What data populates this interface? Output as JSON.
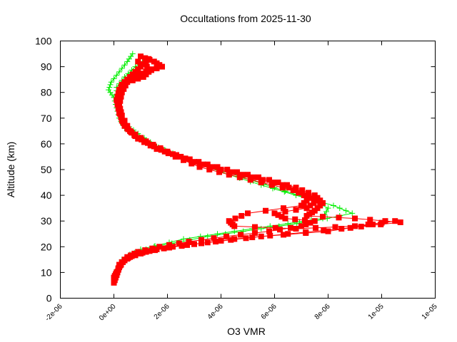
{
  "chart_data": {
    "type": "scatter",
    "title": "Occultations from 2025-11-30",
    "xlabel": "O3 VMR",
    "ylabel": "Altitude (km)",
    "xlim": [
      -2e-06,
      1.2e-05
    ],
    "ylim": [
      0,
      100
    ],
    "x_tick_labels": [
      "-2e-06",
      "0e+00",
      "2e-06",
      "4e-06",
      "6e-06",
      "8e-06",
      "1e-05",
      "1e-05"
    ],
    "y_tick_labels": [
      "0",
      "10",
      "20",
      "30",
      "40",
      "50",
      "60",
      "70",
      "80",
      "90",
      "100"
    ],
    "grid": false,
    "legend": null,
    "series": [
      {
        "name": "green-profile-a",
        "color": "#00ee00",
        "marker": "plus",
        "points": [
          [
            7e-07,
            95
          ],
          [
            5e-07,
            92
          ],
          [
            2e-07,
            88
          ],
          [
            -1e-07,
            84
          ],
          [
            -2e-07,
            81
          ],
          [
            0,
            78
          ],
          [
            1e-07,
            74
          ],
          [
            2e-07,
            70
          ],
          [
            4e-07,
            66
          ],
          [
            8e-07,
            63
          ],
          [
            1.4e-06,
            60
          ],
          [
            2.2e-06,
            56
          ],
          [
            3.2e-06,
            52
          ],
          [
            4.3e-06,
            48
          ],
          [
            5.5e-06,
            44
          ],
          [
            6.8e-06,
            40
          ],
          [
            8.2e-06,
            36
          ],
          [
            8.9e-06,
            33
          ],
          [
            7.5e-06,
            30
          ],
          [
            5.5e-06,
            27
          ],
          [
            3.5e-06,
            24
          ],
          [
            1.5e-06,
            20
          ],
          [
            6e-07,
            17
          ],
          [
            2e-07,
            13
          ],
          [
            1e-07,
            10
          ],
          [
            0,
            7
          ]
        ]
      },
      {
        "name": "green-profile-b",
        "color": "#00ee00",
        "marker": "plus",
        "points": [
          [
            1.2e-06,
            93
          ],
          [
            8e-07,
            90
          ],
          [
            4e-07,
            86
          ],
          [
            1e-07,
            82
          ],
          [
            1e-07,
            78
          ],
          [
            2e-07,
            73
          ],
          [
            4e-07,
            68
          ],
          [
            9e-07,
            64
          ],
          [
            1.6e-06,
            59
          ],
          [
            2.5e-06,
            55
          ],
          [
            3.6e-06,
            51
          ],
          [
            4.8e-06,
            47
          ],
          [
            6e-06,
            43
          ],
          [
            7.2e-06,
            39
          ],
          [
            8e-06,
            35
          ],
          [
            7.8e-06,
            31
          ],
          [
            6.5e-06,
            29
          ],
          [
            4.5e-06,
            26
          ],
          [
            2.6e-06,
            23
          ],
          [
            1e-06,
            19
          ],
          [
            3e-07,
            15
          ],
          [
            1e-07,
            11
          ]
        ]
      },
      {
        "name": "red-profile-a",
        "color": "#ff0000",
        "marker": "square",
        "points": [
          [
            1e-06,
            94
          ],
          [
            1.5e-06,
            92
          ],
          [
            1.8e-06,
            90
          ],
          [
            1.2e-06,
            88
          ],
          [
            6e-07,
            86
          ],
          [
            3e-07,
            83
          ],
          [
            2e-07,
            80
          ],
          [
            2e-07,
            77
          ],
          [
            2e-07,
            73
          ],
          [
            3e-07,
            69
          ],
          [
            5e-07,
            66
          ],
          [
            9e-07,
            62
          ],
          [
            1.6e-06,
            58
          ],
          [
            2.5e-06,
            55
          ],
          [
            3.5e-06,
            52
          ],
          [
            4.6e-06,
            49
          ],
          [
            5.8e-06,
            46
          ],
          [
            6.8e-06,
            43
          ],
          [
            7.5e-06,
            40
          ],
          [
            7.8e-06,
            37
          ],
          [
            7.5e-06,
            34
          ],
          [
            7.2e-06,
            32
          ],
          [
            9e-06,
            31
          ],
          [
            1.07e-05,
            29.5
          ],
          [
            8.5e-06,
            27
          ],
          [
            6.5e-06,
            25
          ],
          [
            4.5e-06,
            23
          ],
          [
            3e-06,
            21
          ],
          [
            1.6e-06,
            19
          ],
          [
            8e-07,
            17
          ],
          [
            4e-07,
            15
          ],
          [
            2e-07,
            12
          ],
          [
            1e-07,
            9
          ],
          [
            0,
            6
          ]
        ]
      },
      {
        "name": "red-profile-b",
        "color": "#ff0000",
        "marker": "square",
        "points": [
          [
            1.3e-06,
            93
          ],
          [
            1e-06,
            90
          ],
          [
            7e-07,
            87
          ],
          [
            4e-07,
            84
          ],
          [
            2e-07,
            81
          ],
          [
            1e-07,
            77
          ],
          [
            2e-07,
            72
          ],
          [
            4e-07,
            67
          ],
          [
            8e-07,
            63
          ],
          [
            1.5e-06,
            59
          ],
          [
            2.3e-06,
            55
          ],
          [
            3.2e-06,
            51
          ],
          [
            4.3e-06,
            48
          ],
          [
            5.5e-06,
            45
          ],
          [
            6.7e-06,
            42
          ],
          [
            7.3e-06,
            39
          ],
          [
            7e-06,
            36
          ],
          [
            5e-06,
            33
          ],
          [
            4.3e-06,
            30
          ],
          [
            4.5e-06,
            28
          ],
          [
            6.8e-06,
            27
          ],
          [
            9e-06,
            28
          ],
          [
            1.05e-05,
            30
          ],
          [
            8e-06,
            26
          ],
          [
            5.5e-06,
            24
          ],
          [
            3.8e-06,
            22
          ],
          [
            2.2e-06,
            20
          ],
          [
            1.2e-06,
            18
          ],
          [
            6e-07,
            16
          ],
          [
            3e-07,
            14
          ],
          [
            1e-07,
            10
          ],
          [
            0,
            8
          ]
        ]
      },
      {
        "name": "red-profile-c",
        "color": "#ff0000",
        "marker": "square",
        "points": [
          [
            9e-07,
            92
          ],
          [
            1.4e-06,
            89
          ],
          [
            1.1e-06,
            86
          ],
          [
            5e-07,
            84
          ],
          [
            3e-07,
            80
          ],
          [
            2e-07,
            75
          ],
          [
            3e-07,
            71
          ],
          [
            6e-07,
            65
          ],
          [
            1.2e-06,
            61
          ],
          [
            2e-06,
            57
          ],
          [
            3e-06,
            53
          ],
          [
            4e-06,
            50
          ],
          [
            5.2e-06,
            47
          ],
          [
            6.3e-06,
            44
          ],
          [
            7e-06,
            41
          ],
          [
            7.6e-06,
            38
          ],
          [
            7.2e-06,
            35
          ],
          [
            6e-06,
            33
          ],
          [
            6.4e-06,
            31
          ],
          [
            7.5e-06,
            30
          ],
          [
            7e-06,
            28
          ],
          [
            5.8e-06,
            26
          ],
          [
            4.2e-06,
            24
          ],
          [
            2.8e-06,
            22
          ],
          [
            1.7e-06,
            20
          ],
          [
            9e-07,
            18
          ],
          [
            5e-07,
            16
          ],
          [
            2e-07,
            13
          ],
          [
            1e-07,
            9
          ]
        ]
      }
    ]
  }
}
